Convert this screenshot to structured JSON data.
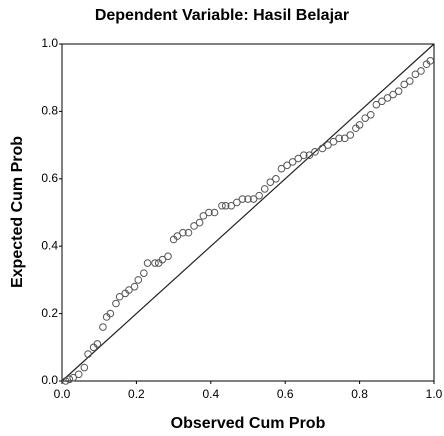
{
  "chart_data": {
    "type": "scatter",
    "title": "Dependent Variable: Hasil Belajar",
    "x_label": "Observed Cum Prob",
    "y_label": "Expected Cum Prob",
    "xlim": [
      0,
      1
    ],
    "ylim": [
      0,
      1
    ],
    "xticks": [
      {
        "value": 0,
        "label": "0.0"
      },
      0.2,
      0.4,
      0.6,
      0.8,
      {
        "value": 1,
        "label": "1.0"
      }
    ],
    "yticks": [
      {
        "value": 0,
        "label": "0.0"
      },
      0.2,
      0.4,
      0.6,
      0.8,
      {
        "value": 1,
        "label": "1.0"
      }
    ],
    "color": "#555555",
    "x": [
      0.01,
      0.02,
      0.03,
      0.045,
      0.06,
      0.07,
      0.085,
      0.095,
      0.11,
      0.12,
      0.13,
      0.145,
      0.155,
      0.17,
      0.18,
      0.195,
      0.205,
      0.22,
      0.23,
      0.25,
      0.26,
      0.27,
      0.285,
      0.3,
      0.31,
      0.325,
      0.34,
      0.355,
      0.37,
      0.38,
      0.395,
      0.41,
      0.43,
      0.44,
      0.455,
      0.47,
      0.485,
      0.5,
      0.515,
      0.53,
      0.545,
      0.56,
      0.575,
      0.59,
      0.605,
      0.62,
      0.635,
      0.65,
      0.665,
      0.68,
      0.7,
      0.715,
      0.73,
      0.745,
      0.76,
      0.775,
      0.79,
      0.8,
      0.815,
      0.83,
      0.845,
      0.86,
      0.875,
      0.89,
      0.905,
      0.92,
      0.935,
      0.95,
      0.965,
      0.98,
      0.99
    ],
    "values": [
      0.0,
      0.005,
      0.01,
      0.02,
      0.04,
      0.08,
      0.1,
      0.11,
      0.16,
      0.19,
      0.2,
      0.23,
      0.25,
      0.26,
      0.27,
      0.28,
      0.3,
      0.32,
      0.35,
      0.35,
      0.35,
      0.36,
      0.37,
      0.42,
      0.43,
      0.44,
      0.44,
      0.46,
      0.47,
      0.49,
      0.5,
      0.5,
      0.52,
      0.52,
      0.52,
      0.53,
      0.54,
      0.54,
      0.54,
      0.55,
      0.57,
      0.59,
      0.6,
      0.63,
      0.64,
      0.65,
      0.66,
      0.67,
      0.67,
      0.68,
      0.69,
      0.7,
      0.71,
      0.72,
      0.72,
      0.73,
      0.75,
      0.76,
      0.78,
      0.79,
      0.82,
      0.83,
      0.84,
      0.85,
      0.86,
      0.88,
      0.89,
      0.91,
      0.92,
      0.94,
      0.95
    ]
  }
}
